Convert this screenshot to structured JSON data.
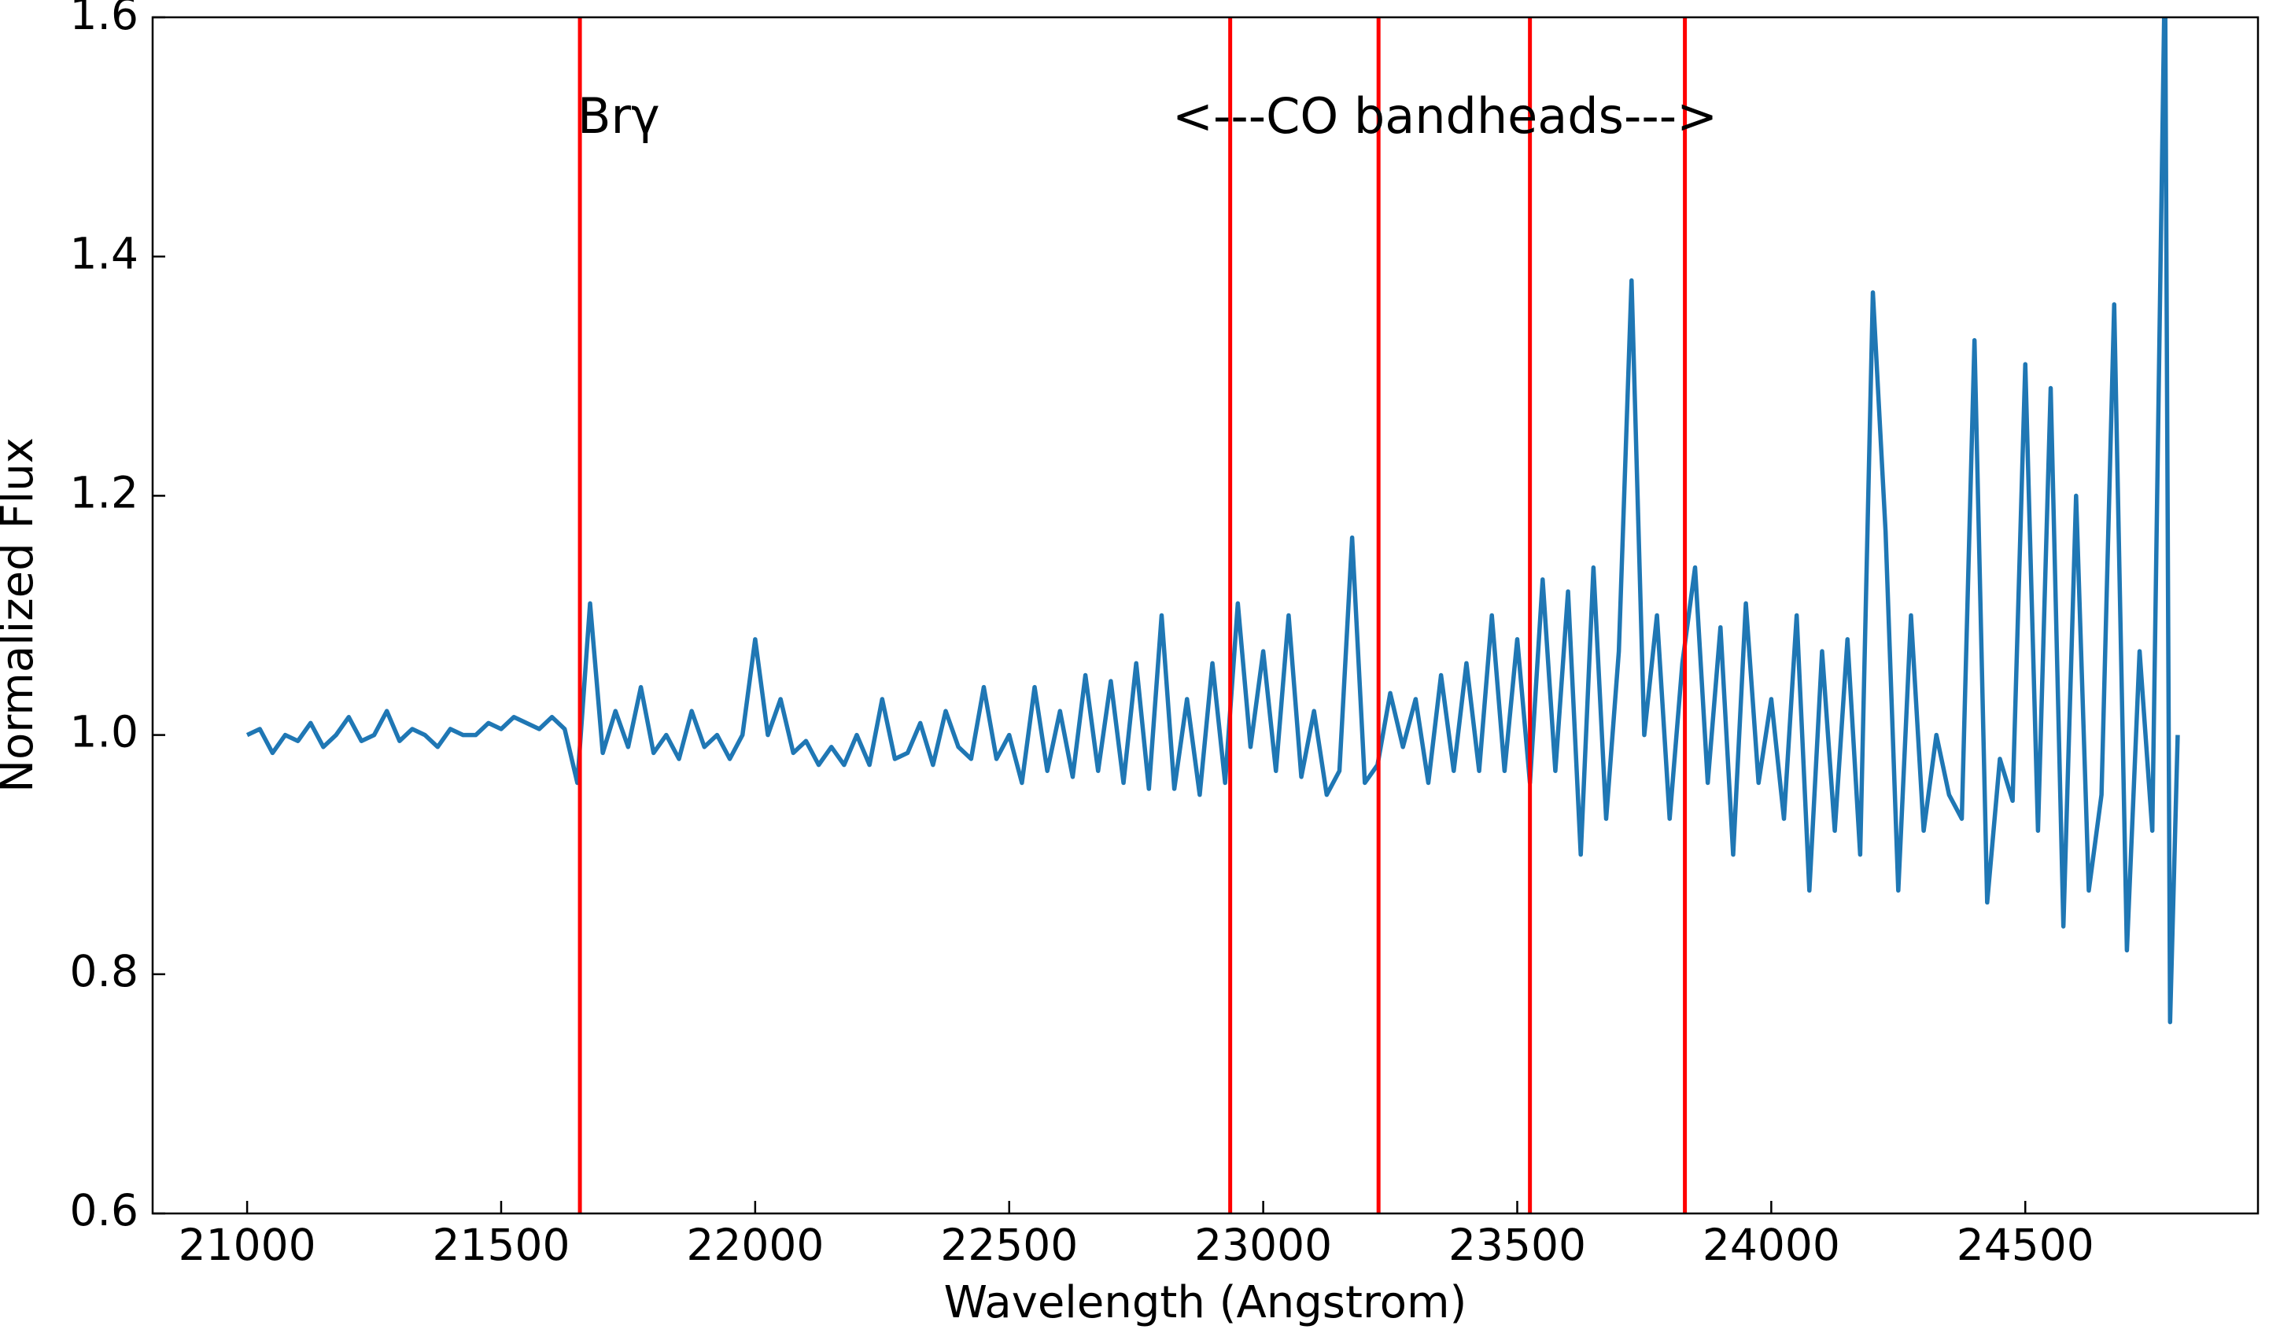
{
  "chart_data": {
    "type": "line",
    "xlabel": "Wavelength (Angstrom)",
    "ylabel": "Normalized Flux",
    "annotations": [
      "Brγ",
      "<---CO bandheads--->"
    ],
    "color": "#1f77b4",
    "x": [
      21000,
      21025,
      21050,
      21075,
      21100,
      21125,
      21150,
      21175,
      21200,
      21225,
      21250,
      21275,
      21300,
      21325,
      21350,
      21375,
      21400,
      21425,
      21450,
      21475,
      21500,
      21525,
      21550,
      21575,
      21600,
      21625,
      21650,
      21675,
      21700,
      21725,
      21750,
      21775,
      21800,
      21825,
      21850,
      21875,
      21900,
      21925,
      21950,
      21975,
      22000,
      22025,
      22050,
      22075,
      22100,
      22125,
      22150,
      22175,
      22200,
      22225,
      22250,
      22275,
      22300,
      22325,
      22350,
      22375,
      22400,
      22425,
      22450,
      22475,
      22500,
      22525,
      22550,
      22575,
      22600,
      22625,
      22650,
      22675,
      22700,
      22725,
      22750,
      22775,
      22800,
      22825,
      22850,
      22875,
      22900,
      22925,
      22950,
      22975,
      23000,
      23025,
      23050,
      23075,
      23100,
      23125,
      23150,
      23175,
      23200,
      23225,
      23250,
      23275,
      23300,
      23325,
      23350,
      23375,
      23400,
      23425,
      23450,
      23475,
      23500,
      23525,
      23550,
      23575,
      23600,
      23625,
      23650,
      23675,
      23700,
      23725,
      23750,
      23775,
      23800,
      23825,
      23850,
      23875,
      23900,
      23925,
      23950,
      23975,
      24000,
      24025,
      24050,
      24075,
      24100,
      24125,
      24150,
      24175,
      24200,
      24225,
      24250,
      24275,
      24300,
      24325,
      24350,
      24375,
      24400,
      24425,
      24450,
      24475,
      24500,
      24525,
      24550,
      24575,
      24600,
      24625,
      24650,
      24675,
      24700,
      24725,
      24750,
      24775,
      24785,
      24800
    ],
    "values": [
      1.0,
      1.005,
      0.985,
      1.0,
      0.995,
      1.01,
      0.99,
      1.0,
      1.015,
      0.995,
      1.0,
      1.02,
      0.995,
      1.005,
      1.0,
      0.99,
      1.005,
      1.0,
      1.0,
      1.01,
      1.005,
      1.015,
      1.01,
      1.005,
      1.015,
      1.005,
      0.96,
      1.11,
      0.985,
      1.02,
      0.99,
      1.04,
      0.985,
      1.0,
      0.98,
      1.02,
      0.99,
      1.0,
      0.98,
      1.0,
      1.08,
      1.0,
      1.03,
      0.985,
      0.995,
      0.975,
      0.99,
      0.975,
      1.0,
      0.975,
      1.03,
      0.98,
      0.985,
      1.01,
      0.975,
      1.02,
      0.99,
      0.98,
      1.04,
      0.98,
      1.0,
      0.96,
      1.04,
      0.97,
      1.02,
      0.965,
      1.05,
      0.97,
      1.045,
      0.96,
      1.06,
      0.955,
      1.1,
      0.955,
      1.03,
      0.95,
      1.06,
      0.96,
      1.11,
      0.99,
      1.07,
      0.97,
      1.1,
      0.965,
      1.02,
      0.95,
      0.97,
      1.165,
      0.96,
      0.975,
      1.035,
      0.99,
      1.03,
      0.96,
      1.05,
      0.97,
      1.06,
      0.97,
      1.1,
      0.97,
      1.08,
      0.96,
      1.13,
      0.97,
      1.12,
      0.9,
      1.14,
      0.93,
      1.07,
      1.38,
      1.0,
      1.1,
      0.93,
      1.06,
      1.14,
      0.96,
      1.09,
      0.9,
      1.11,
      0.96,
      1.03,
      0.93,
      1.1,
      0.87,
      1.07,
      0.92,
      1.08,
      0.9,
      1.37,
      1.17,
      0.87,
      1.1,
      0.92,
      1.0,
      0.95,
      0.93,
      1.33,
      0.86,
      0.98,
      0.945,
      1.31,
      0.92,
      1.29,
      0.84,
      1.2,
      0.87,
      0.95,
      1.36,
      0.82,
      1.07,
      0.92,
      1.65,
      0.76,
      1.0
    ],
    "vlines": {
      "x": [
        21655,
        22935,
        23227,
        23525,
        23830
      ],
      "color": "#ff0000"
    },
    "xlim": [
      20814,
      24958
    ],
    "ylim": [
      0.6,
      1.6
    ],
    "xticks": [
      21000,
      21500,
      22000,
      22500,
      23000,
      23500,
      24000,
      24500
    ],
    "yticks": [
      0.6,
      0.8,
      {
        "value": 1.0,
        "label": "1.0"
      },
      1.2,
      1.4,
      1.6
    ],
    "tick_direction": "in",
    "grid": false
  }
}
